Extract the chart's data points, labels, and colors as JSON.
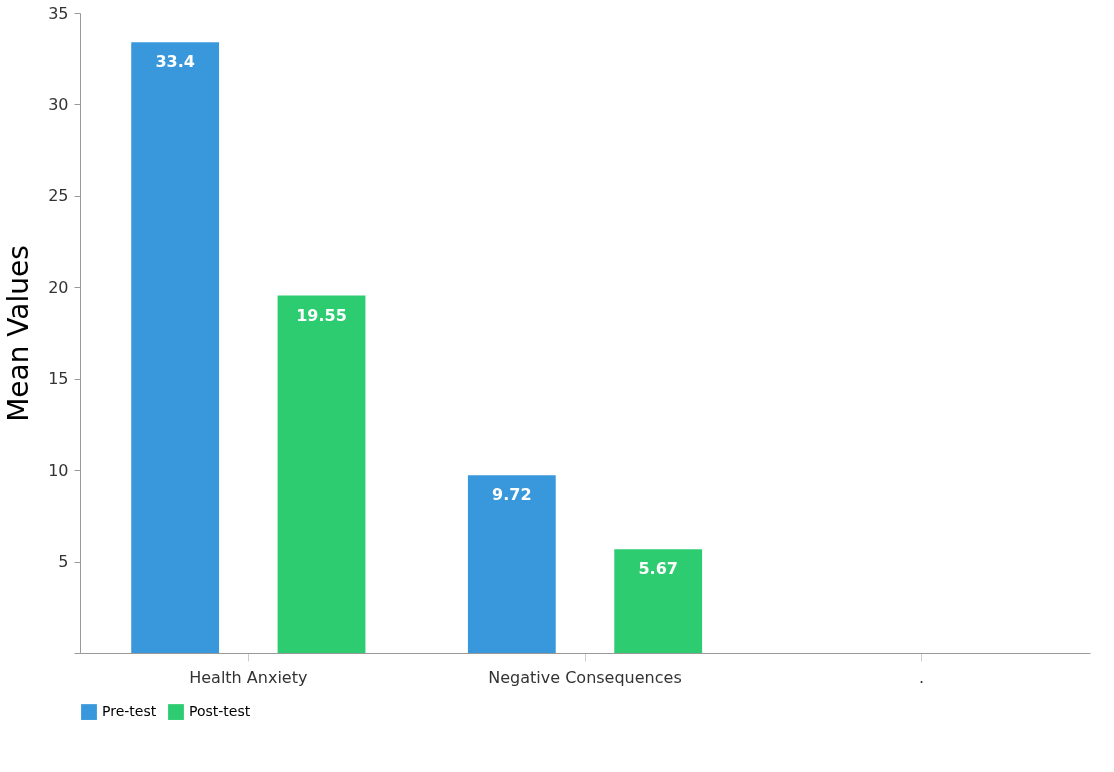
{
  "chart_data": {
    "type": "bar",
    "ylabel": "Mean Values",
    "categories": [
      "Health Anxiety",
      "Negative Consequences",
      "."
    ],
    "series": [
      {
        "name": "Pre-test",
        "color": "#3898db",
        "values": [
          33.4,
          9.72,
          null
        ]
      },
      {
        "name": "Post-test",
        "color": "#2ecc71",
        "values": [
          19.55,
          5.67,
          null
        ]
      }
    ],
    "ylim": [
      0,
      35
    ],
    "yticks": [
      {
        "value": 0,
        "label": null
      },
      5,
      10,
      15,
      20,
      25,
      30,
      35
    ],
    "grid": false,
    "legend": "bottom",
    "data_labels": true
  }
}
